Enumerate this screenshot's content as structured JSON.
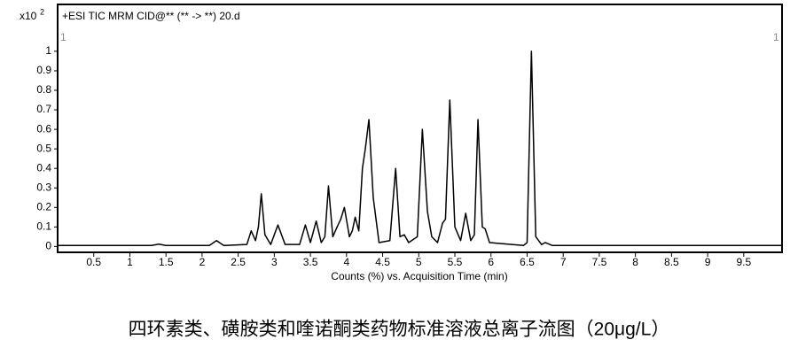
{
  "chart_data": {
    "type": "line",
    "title": "+ESI TIC MRM CID@** (** -> **) 20.d",
    "y_scale_label": "x10",
    "y_scale_exponent": "2",
    "segment_markers": [
      "1",
      "1"
    ],
    "x_label": "Counts (%) vs. Acquisition Time (min)",
    "caption": "四环素类、磺胺类和喹诺酮类药物标准溶液总离子流图（20μg/L）",
    "color": "#000000",
    "x": [
      0,
      1.3,
      1.4,
      1.5,
      2.1,
      2.2,
      2.3,
      2.62,
      2.68,
      2.74,
      2.78,
      2.82,
      2.87,
      2.95,
      3.05,
      3.15,
      3.35,
      3.43,
      3.5,
      3.58,
      3.65,
      3.7,
      3.75,
      3.81,
      3.87,
      3.92,
      3.97,
      4.04,
      4.08,
      4.12,
      4.17,
      4.22,
      4.26,
      4.31,
      4.37,
      4.45,
      4.6,
      4.68,
      4.74,
      4.8,
      4.86,
      4.98,
      5.05,
      5.12,
      5.18,
      5.26,
      5.33,
      5.37,
      5.43,
      5.5,
      5.58,
      5.65,
      5.72,
      5.77,
      5.82,
      5.88,
      5.92,
      5.98,
      6.45,
      6.5,
      6.56,
      6.62,
      6.7,
      6.75,
      6.85,
      10.03
    ],
    "values": [
      0.005,
      0.005,
      0.012,
      0.005,
      0.005,
      0.03,
      0.005,
      0.01,
      0.08,
      0.03,
      0.1,
      0.27,
      0.06,
      0.01,
      0.11,
      0.01,
      0.01,
      0.11,
      0.02,
      0.13,
      0.02,
      0.05,
      0.31,
      0.05,
      0.1,
      0.14,
      0.2,
      0.05,
      0.08,
      0.15,
      0.08,
      0.4,
      0.5,
      0.65,
      0.25,
      0.02,
      0.03,
      0.4,
      0.05,
      0.06,
      0.02,
      0.05,
      0.6,
      0.18,
      0.05,
      0.02,
      0.12,
      0.14,
      0.75,
      0.1,
      0.03,
      0.17,
      0.03,
      0.06,
      0.65,
      0.1,
      0.09,
      0.02,
      0.005,
      0.02,
      1.0,
      0.05,
      0.01,
      0.02,
      0.005,
      0.005
    ],
    "xlim": [
      0,
      10.03
    ],
    "ylim": [
      -0.03,
      1.24
    ],
    "xticks": [
      0.5,
      1,
      1.5,
      2,
      2.5,
      3,
      3.5,
      4,
      4.5,
      5,
      5.5,
      6,
      6.5,
      7,
      7.5,
      8,
      8.5,
      9,
      9.5
    ],
    "yticks": [
      0,
      0.1,
      0.2,
      0.3,
      0.4,
      0.5,
      0.6,
      0.7,
      0.8,
      0.9,
      1
    ]
  }
}
